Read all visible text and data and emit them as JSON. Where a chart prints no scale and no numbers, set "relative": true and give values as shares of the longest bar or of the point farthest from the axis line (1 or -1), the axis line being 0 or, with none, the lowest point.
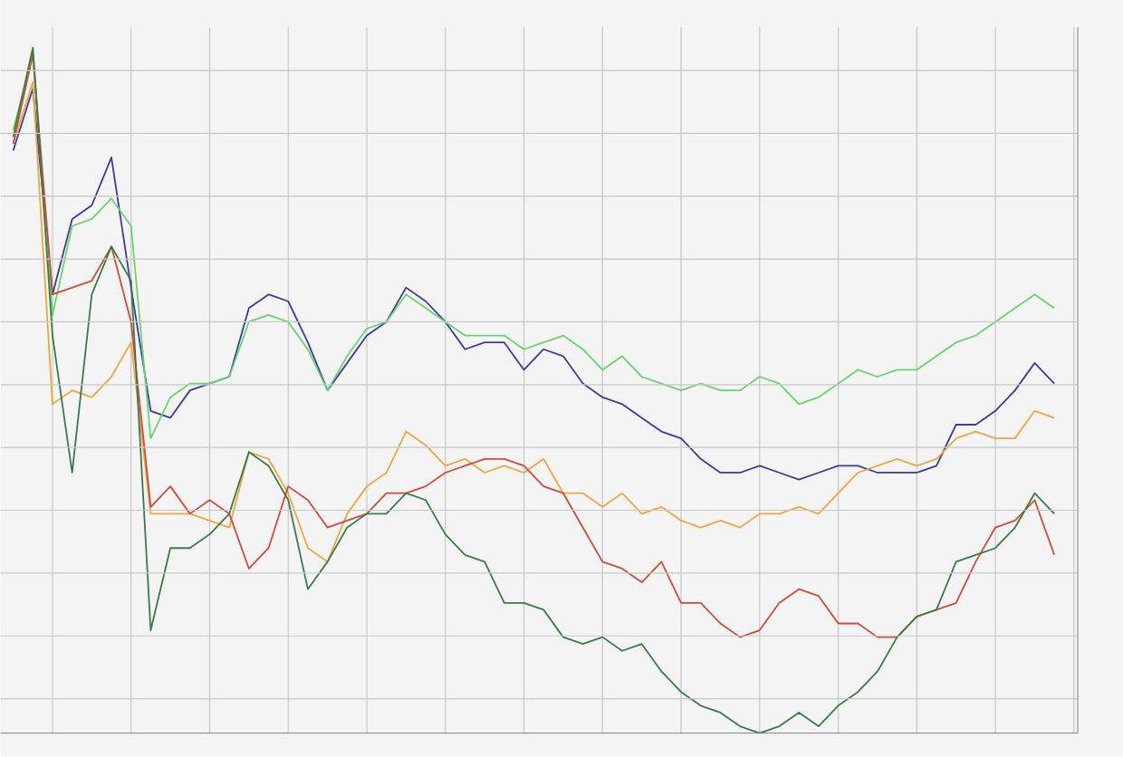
{
  "chart_data": {
    "type": "line",
    "relative": true,
    "grid": true,
    "line_style": "solid",
    "categories": [
      null,
      null,
      null,
      null,
      null,
      null,
      null,
      null,
      null,
      null,
      null,
      null,
      null,
      null,
      null,
      null,
      null,
      null,
      null,
      null,
      null,
      null,
      null,
      null,
      null,
      null,
      null,
      null,
      null,
      null,
      null,
      null,
      null,
      null,
      null,
      null,
      null,
      null,
      null,
      null,
      null,
      null,
      null,
      null,
      null,
      null,
      null,
      null,
      null,
      null,
      null,
      null,
      null,
      null
    ],
    "series": [
      {
        "color": "#3a3aa0",
        "values": [
          0.85,
          0.94,
          0.64,
          0.75,
          0.77,
          0.84,
          0.65,
          0.47,
          0.46,
          0.5,
          0.51,
          0.52,
          0.62,
          0.64,
          0.63,
          0.57,
          0.5,
          0.54,
          0.58,
          0.6,
          0.65,
          0.63,
          0.6,
          0.56,
          0.57,
          0.57,
          0.53,
          0.56,
          0.55,
          0.51,
          0.49,
          0.48,
          0.46,
          0.44,
          0.43,
          0.4,
          0.38,
          0.38,
          0.39,
          0.38,
          0.37,
          0.38,
          0.39,
          0.39,
          0.38,
          0.38,
          0.38,
          0.39,
          0.45,
          0.45,
          0.47,
          0.5,
          0.54,
          0.51
        ]
      },
      {
        "color": "#6ad46a",
        "values": [
          0.88,
          0.99,
          0.61,
          0.74,
          0.75,
          0.78,
          0.74,
          0.43,
          0.49,
          0.51,
          0.51,
          0.52,
          0.6,
          0.61,
          0.6,
          0.56,
          0.5,
          0.55,
          0.59,
          0.6,
          0.64,
          0.62,
          0.6,
          0.58,
          0.58,
          0.58,
          0.56,
          0.57,
          0.58,
          0.56,
          0.53,
          0.55,
          0.52,
          0.51,
          0.5,
          0.51,
          0.5,
          0.5,
          0.52,
          0.51,
          0.48,
          0.49,
          0.51,
          0.53,
          0.52,
          0.53,
          0.53,
          0.55,
          0.57,
          0.58,
          0.6,
          0.62,
          0.64,
          0.62
        ]
      },
      {
        "color": "#f0a640",
        "values": [
          0.86,
          0.95,
          0.48,
          0.5,
          0.49,
          0.52,
          0.57,
          0.32,
          0.32,
          0.32,
          0.31,
          0.3,
          0.41,
          0.4,
          0.35,
          0.27,
          0.25,
          0.32,
          0.36,
          0.38,
          0.44,
          0.42,
          0.39,
          0.4,
          0.38,
          0.39,
          0.38,
          0.4,
          0.35,
          0.35,
          0.33,
          0.35,
          0.32,
          0.33,
          0.31,
          0.3,
          0.31,
          0.3,
          0.32,
          0.32,
          0.33,
          0.32,
          0.35,
          0.38,
          0.39,
          0.4,
          0.39,
          0.4,
          0.43,
          0.44,
          0.43,
          0.43,
          0.47,
          0.46
        ]
      },
      {
        "color": "#d04a3a",
        "values": [
          0.86,
          0.99,
          0.64,
          0.65,
          0.66,
          0.71,
          0.6,
          0.33,
          0.36,
          0.32,
          0.34,
          0.32,
          0.24,
          0.27,
          0.36,
          0.34,
          0.3,
          0.31,
          0.32,
          0.35,
          0.35,
          0.36,
          0.38,
          0.39,
          0.4,
          0.4,
          0.39,
          0.36,
          0.35,
          0.3,
          0.25,
          0.24,
          0.22,
          0.25,
          0.19,
          0.19,
          0.16,
          0.14,
          0.15,
          0.19,
          0.21,
          0.2,
          0.16,
          0.16,
          0.14,
          0.14,
          0.17,
          0.18,
          0.19,
          0.25,
          0.3,
          0.31,
          0.34,
          0.26
        ]
      },
      {
        "color": "#3a7a4a",
        "values": [
          0.87,
          1.0,
          0.58,
          0.38,
          0.64,
          0.71,
          0.66,
          0.15,
          0.27,
          0.27,
          0.29,
          0.32,
          0.41,
          0.39,
          0.34,
          0.21,
          0.25,
          0.3,
          0.32,
          0.32,
          0.35,
          0.34,
          0.29,
          0.26,
          0.25,
          0.19,
          0.19,
          0.18,
          0.14,
          0.13,
          0.14,
          0.12,
          0.13,
          0.09,
          0.06,
          0.04,
          0.03,
          0.01,
          0.0,
          0.01,
          0.03,
          0.01,
          0.04,
          0.06,
          0.09,
          0.14,
          0.17,
          0.18,
          0.25,
          0.26,
          0.27,
          0.3,
          0.35,
          0.32
        ]
      }
    ]
  }
}
